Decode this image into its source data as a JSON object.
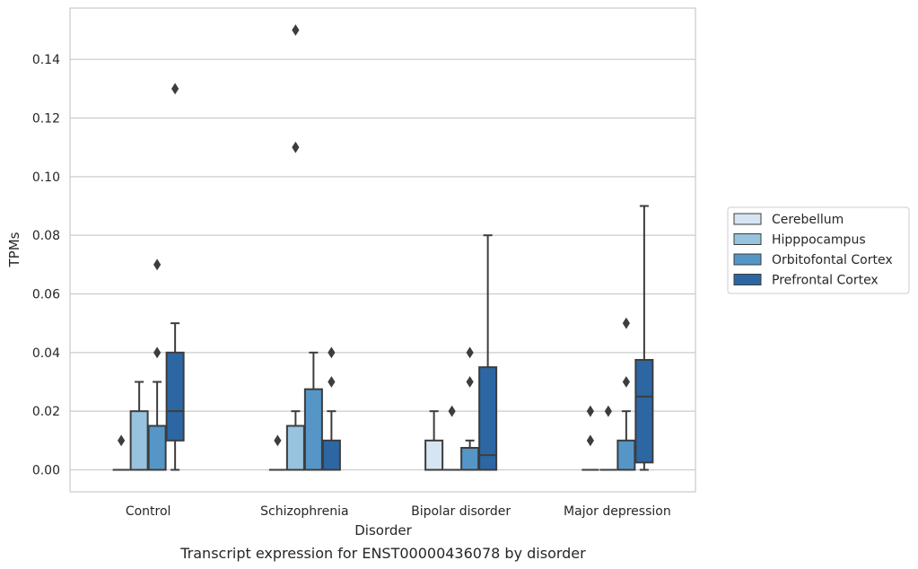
{
  "chart_data": {
    "type": "box",
    "title": "",
    "caption": "Transcript expression for ENST00000436078 by disorder",
    "xlabel": "Disorder",
    "ylabel": "TPMs",
    "ylim": [
      -0.0075,
      0.1575
    ],
    "yticks": [
      0.0,
      0.02,
      0.04,
      0.06,
      0.08,
      0.1,
      0.12,
      0.14
    ],
    "ytick_labels": [
      "0.00",
      "0.02",
      "0.04",
      "0.06",
      "0.08",
      "0.10",
      "0.12",
      "0.14"
    ],
    "grid": "horizontal",
    "legend_position": "right",
    "categories": [
      "Control",
      "Schizophrenia",
      "Bipolar disorder",
      "Major depression"
    ],
    "series": [
      {
        "name": "Cerebellum",
        "color": "#d6e5f4",
        "boxes": [
          {
            "q1": 0.0,
            "median": 0.0,
            "q3": 0.0,
            "whisker_low": 0.0,
            "whisker_high": 0.0,
            "outliers": [
              0.01
            ]
          },
          {
            "q1": 0.0,
            "median": 0.0,
            "q3": 0.0,
            "whisker_low": 0.0,
            "whisker_high": 0.0,
            "outliers": [
              0.01
            ]
          },
          {
            "q1": 0.0,
            "median": 0.0,
            "q3": 0.01,
            "whisker_low": 0.0,
            "whisker_high": 0.02,
            "outliers": []
          },
          {
            "q1": 0.0,
            "median": 0.0,
            "q3": 0.0,
            "whisker_low": 0.0,
            "whisker_high": 0.0,
            "outliers": [
              0.01,
              0.02
            ]
          }
        ]
      },
      {
        "name": "Hipppocampus",
        "color": "#98c3de",
        "boxes": [
          {
            "q1": 0.0,
            "median": 0.0,
            "q3": 0.02,
            "whisker_low": 0.0,
            "whisker_high": 0.03,
            "outliers": []
          },
          {
            "q1": 0.0,
            "median": 0.0,
            "q3": 0.015,
            "whisker_low": 0.0,
            "whisker_high": 0.02,
            "outliers": [
              0.15,
              0.11
            ]
          },
          {
            "q1": 0.0,
            "median": 0.0,
            "q3": 0.0,
            "whisker_low": 0.0,
            "whisker_high": 0.0,
            "outliers": [
              0.02
            ]
          },
          {
            "q1": 0.0,
            "median": 0.0,
            "q3": 0.0,
            "whisker_low": 0.0,
            "whisker_high": 0.0,
            "outliers": [
              0.02
            ]
          }
        ]
      },
      {
        "name": "Orbitofontal Cortex",
        "color": "#5596c7",
        "boxes": [
          {
            "q1": 0.0,
            "median": 0.0,
            "q3": 0.015,
            "whisker_low": 0.0,
            "whisker_high": 0.03,
            "outliers": [
              0.04,
              0.07
            ]
          },
          {
            "q1": 0.0,
            "median": 0.0,
            "q3": 0.0275,
            "whisker_low": 0.0,
            "whisker_high": 0.04,
            "outliers": []
          },
          {
            "q1": 0.0,
            "median": 0.0,
            "q3": 0.0075,
            "whisker_low": 0.0,
            "whisker_high": 0.01,
            "outliers": [
              0.03,
              0.04
            ]
          },
          {
            "q1": 0.0,
            "median": 0.0,
            "q3": 0.01,
            "whisker_low": 0.0,
            "whisker_high": 0.02,
            "outliers": [
              0.03,
              0.05
            ]
          }
        ]
      },
      {
        "name": "Prefrontal Cortex",
        "color": "#2c67a4",
        "boxes": [
          {
            "q1": 0.01,
            "median": 0.02,
            "q3": 0.04,
            "whisker_low": 0.0,
            "whisker_high": 0.05,
            "outliers": [
              0.13
            ]
          },
          {
            "q1": 0.0,
            "median": 0.0,
            "q3": 0.01,
            "whisker_low": 0.0,
            "whisker_high": 0.02,
            "outliers": [
              0.03,
              0.04
            ]
          },
          {
            "q1": 0.0,
            "median": 0.005,
            "q3": 0.035,
            "whisker_low": 0.0,
            "whisker_high": 0.08,
            "outliers": []
          },
          {
            "q1": 0.0025,
            "median": 0.025,
            "q3": 0.0375,
            "whisker_low": 0.0,
            "whisker_high": 0.09,
            "outliers": []
          }
        ]
      }
    ]
  }
}
